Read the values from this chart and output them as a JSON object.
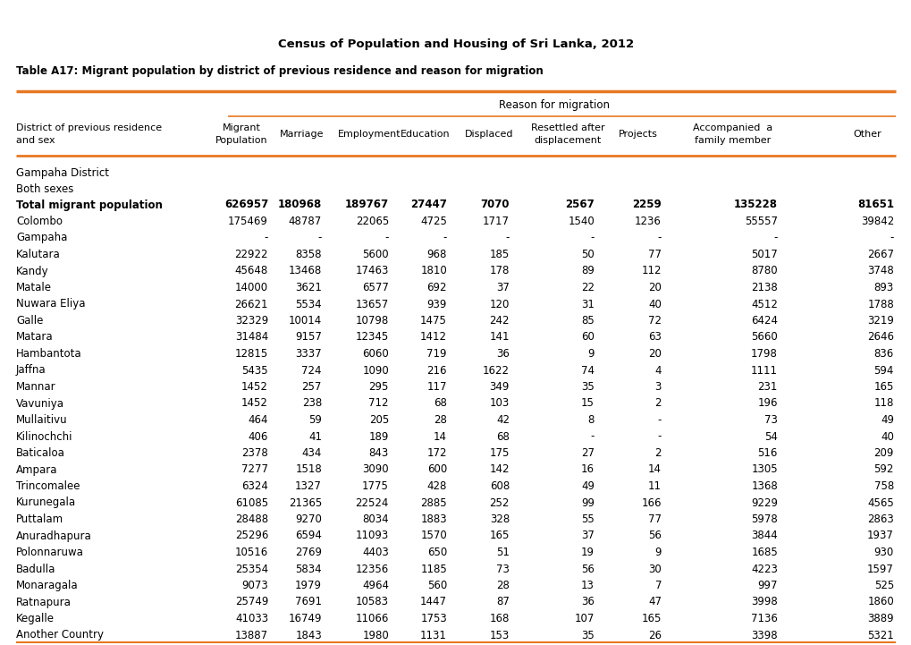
{
  "title": "Census of Population and Housing of Sri Lanka, 2012",
  "subtitle": "Table A17: Migrant population by district of previous residence and reason for migration",
  "header_group": "Reason for migration",
  "section_label": "Gampaha District",
  "subsection_label": "Both sexes",
  "bold_row": [
    "Total migrant population",
    "626957",
    "180968",
    "189767",
    "27447",
    "7070",
    "2567",
    "2259",
    "135228",
    "81651"
  ],
  "rows": [
    [
      "Colombo",
      "175469",
      "48787",
      "22065",
      "4725",
      "1717",
      "1540",
      "1236",
      "55557",
      "39842"
    ],
    [
      "Gampaha",
      "-",
      "-",
      "-",
      "-",
      "-",
      "-",
      "-",
      "-",
      "-"
    ],
    [
      "Kalutara",
      "22922",
      "8358",
      "5600",
      "968",
      "185",
      "50",
      "77",
      "5017",
      "2667"
    ],
    [
      "Kandy",
      "45648",
      "13468",
      "17463",
      "1810",
      "178",
      "89",
      "112",
      "8780",
      "3748"
    ],
    [
      "Matale",
      "14000",
      "3621",
      "6577",
      "692",
      "37",
      "22",
      "20",
      "2138",
      "893"
    ],
    [
      "Nuwara Eliya",
      "26621",
      "5534",
      "13657",
      "939",
      "120",
      "31",
      "40",
      "4512",
      "1788"
    ],
    [
      "Galle",
      "32329",
      "10014",
      "10798",
      "1475",
      "242",
      "85",
      "72",
      "6424",
      "3219"
    ],
    [
      "Matara",
      "31484",
      "9157",
      "12345",
      "1412",
      "141",
      "60",
      "63",
      "5660",
      "2646"
    ],
    [
      "Hambantota",
      "12815",
      "3337",
      "6060",
      "719",
      "36",
      "9",
      "20",
      "1798",
      "836"
    ],
    [
      "Jaffna",
      "5435",
      "724",
      "1090",
      "216",
      "1622",
      "74",
      "4",
      "1111",
      "594"
    ],
    [
      "Mannar",
      "1452",
      "257",
      "295",
      "117",
      "349",
      "35",
      "3",
      "231",
      "165"
    ],
    [
      "Vavuniya",
      "1452",
      "238",
      "712",
      "68",
      "103",
      "15",
      "2",
      "196",
      "118"
    ],
    [
      "Mullaitivu",
      "464",
      "59",
      "205",
      "28",
      "42",
      "8",
      "-",
      "73",
      "49"
    ],
    [
      "Kilinochchi",
      "406",
      "41",
      "189",
      "14",
      "68",
      "-",
      "-",
      "54",
      "40"
    ],
    [
      "Baticaloa",
      "2378",
      "434",
      "843",
      "172",
      "175",
      "27",
      "2",
      "516",
      "209"
    ],
    [
      "Ampara",
      "7277",
      "1518",
      "3090",
      "600",
      "142",
      "16",
      "14",
      "1305",
      "592"
    ],
    [
      "Trincomalee",
      "6324",
      "1327",
      "1775",
      "428",
      "608",
      "49",
      "11",
      "1368",
      "758"
    ],
    [
      "Kurunegala",
      "61085",
      "21365",
      "22524",
      "2885",
      "252",
      "99",
      "166",
      "9229",
      "4565"
    ],
    [
      "Puttalam",
      "28488",
      "9270",
      "8034",
      "1883",
      "328",
      "55",
      "77",
      "5978",
      "2863"
    ],
    [
      "Anuradhapura",
      "25296",
      "6594",
      "11093",
      "1570",
      "165",
      "37",
      "56",
      "3844",
      "1937"
    ],
    [
      "Polonnaruwa",
      "10516",
      "2769",
      "4403",
      "650",
      "51",
      "19",
      "9",
      "1685",
      "930"
    ],
    [
      "Badulla",
      "25354",
      "5834",
      "12356",
      "1185",
      "73",
      "56",
      "30",
      "4223",
      "1597"
    ],
    [
      "Monaragala",
      "9073",
      "1979",
      "4964",
      "560",
      "28",
      "13",
      "7",
      "997",
      "525"
    ],
    [
      "Ratnapura",
      "25749",
      "7691",
      "10583",
      "1447",
      "87",
      "36",
      "47",
      "3998",
      "1860"
    ],
    [
      "Kegalle",
      "41033",
      "16749",
      "11066",
      "1753",
      "168",
      "107",
      "165",
      "7136",
      "3889"
    ],
    [
      "Another Country",
      "13887",
      "1843",
      "1980",
      "1131",
      "153",
      "35",
      "26",
      "3398",
      "5321"
    ]
  ],
  "orange_color": "#E87722",
  "font_color": "#000000",
  "fig_width": 10.2,
  "fig_height": 7.21,
  "dpi": 100
}
